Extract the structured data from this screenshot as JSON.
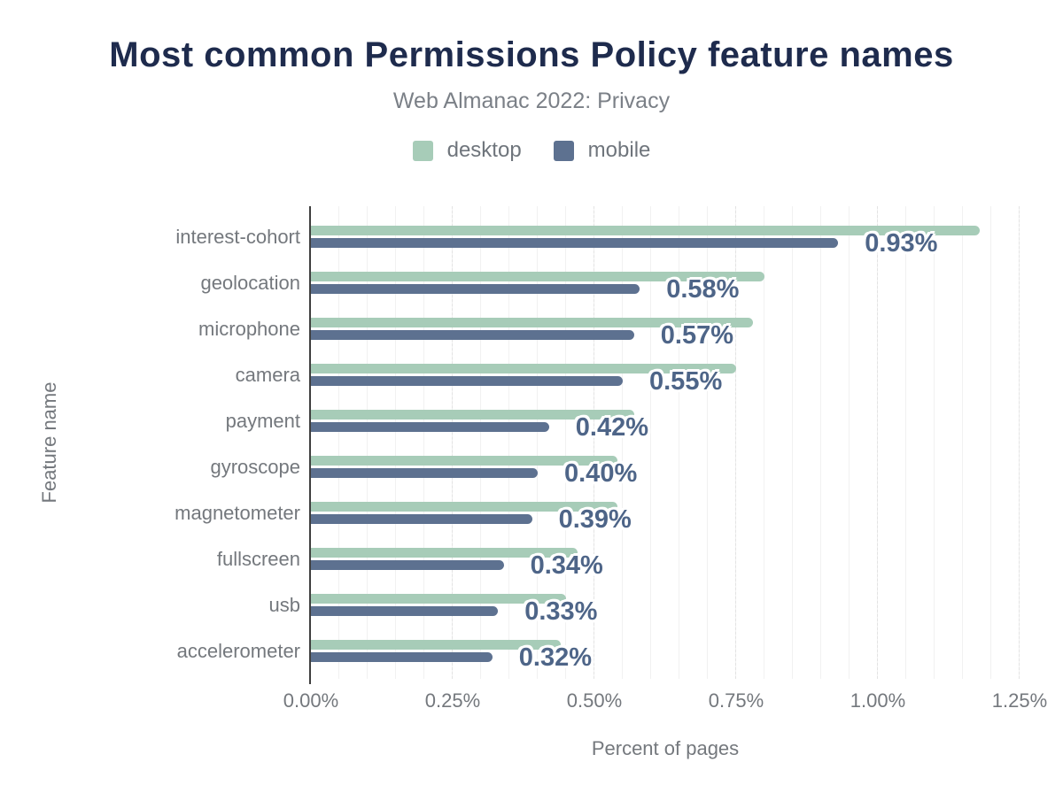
{
  "header": {
    "title": "Most common Permissions Policy feature names",
    "subtitle": "Web Almanac 2022: Privacy"
  },
  "legend": [
    {
      "label": "desktop",
      "color": "#a7ccb8"
    },
    {
      "label": "mobile",
      "color": "#5d7190"
    }
  ],
  "colors": {
    "title_text": "#1e2b4d",
    "axis_text": "#74787d",
    "value_label_text": "#4e6588",
    "axis_line": "#3f3f3f",
    "desktop_bar": "#a7ccb8",
    "mobile_bar": "#5d7190"
  },
  "chart_data": {
    "type": "bar",
    "orientation": "horizontal",
    "title": "Most common Permissions Policy feature names",
    "subtitle": "Web Almanac 2022: Privacy",
    "xlabel": "Percent of pages",
    "ylabel": "Feature name",
    "xlim": [
      0,
      1.25
    ],
    "x_ticks": [
      "0.00%",
      "0.25%",
      "0.50%",
      "0.75%",
      "1.00%",
      "1.25%"
    ],
    "grid": "vertical, minor every 0.05%, major dashed every 0.25%",
    "legend_position": "top center",
    "categories": [
      "interest-cohort",
      "geolocation",
      "microphone",
      "camera",
      "payment",
      "gyroscope",
      "magnetometer",
      "fullscreen",
      "usb",
      "accelerometer"
    ],
    "series": [
      {
        "name": "desktop",
        "color": "#a7ccb8",
        "values": [
          1.18,
          0.8,
          0.78,
          0.75,
          0.57,
          0.54,
          0.54,
          0.47,
          0.45,
          0.44
        ]
      },
      {
        "name": "mobile",
        "color": "#5d7190",
        "values": [
          0.93,
          0.58,
          0.57,
          0.55,
          0.42,
          0.4,
          0.39,
          0.34,
          0.33,
          0.32
        ]
      }
    ],
    "value_labels_series": "mobile",
    "value_labels": [
      "0.93%",
      "0.58%",
      "0.57%",
      "0.55%",
      "0.42%",
      "0.40%",
      "0.39%",
      "0.34%",
      "0.33%",
      "0.32%"
    ]
  }
}
